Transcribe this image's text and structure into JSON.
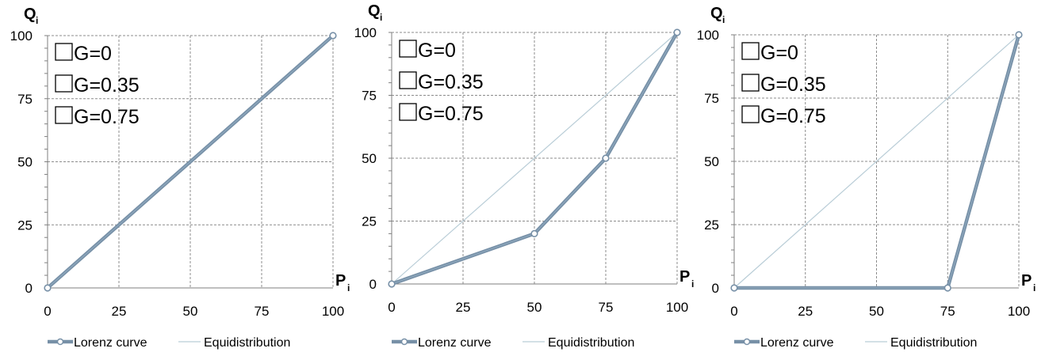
{
  "chart_data": [
    {
      "type": "line",
      "ylabel": "Q",
      "ylabel_sub": "i",
      "xlabel": "P",
      "xlabel_sub": "i",
      "xlim": [
        0,
        100
      ],
      "ylim": [
        0,
        100
      ],
      "xticks": [
        "0",
        "25",
        "50",
        "75",
        "100"
      ],
      "yticks": [
        "0",
        "25",
        "50",
        "75",
        "100"
      ],
      "grid": true,
      "legend_position": "bottom",
      "annotations": [
        "G=0",
        "G=0.35",
        "G=0.75"
      ],
      "series": [
        {
          "name": "Lorenz curve",
          "x": [
            0,
            100
          ],
          "y": [
            0,
            100
          ],
          "markers": true
        },
        {
          "name": "Equidistribution",
          "x": [
            0,
            100
          ],
          "y": [
            0,
            100
          ],
          "markers": false
        }
      ]
    },
    {
      "type": "line",
      "ylabel": "Q",
      "ylabel_sub": "i",
      "xlabel": "P",
      "xlabel_sub": "i",
      "xlim": [
        0,
        100
      ],
      "ylim": [
        0,
        100
      ],
      "xticks": [
        "0",
        "25",
        "50",
        "75",
        "100"
      ],
      "yticks": [
        "0",
        "25",
        "50",
        "75",
        "100"
      ],
      "grid": true,
      "legend_position": "bottom",
      "annotations": [
        "G=0",
        "G=0.35",
        "G=0.75"
      ],
      "series": [
        {
          "name": "Lorenz curve",
          "x": [
            0,
            50,
            75,
            100
          ],
          "y": [
            0,
            20,
            50,
            100
          ],
          "markers": true
        },
        {
          "name": "Equidistribution",
          "x": [
            0,
            100
          ],
          "y": [
            0,
            100
          ],
          "markers": false
        }
      ]
    },
    {
      "type": "line",
      "ylabel": "Q",
      "ylabel_sub": "i",
      "xlabel": "P",
      "xlabel_sub": "i",
      "xlim": [
        0,
        100
      ],
      "ylim": [
        0,
        100
      ],
      "xticks": [
        "0",
        "25",
        "50",
        "75",
        "100"
      ],
      "yticks": [
        "0",
        "25",
        "50",
        "75",
        "100"
      ],
      "grid": true,
      "legend_position": "bottom",
      "annotations": [
        "G=0",
        "G=0.35",
        "G=0.75"
      ],
      "series": [
        {
          "name": "Lorenz curve",
          "x": [
            0,
            75,
            100
          ],
          "y": [
            0,
            0,
            100
          ],
          "markers": true
        },
        {
          "name": "Equidistribution",
          "x": [
            0,
            100
          ],
          "y": [
            0,
            100
          ],
          "markers": false
        }
      ]
    }
  ],
  "colors": {
    "lorenz": "#7790a7",
    "lorenz_core": "#8ea8bd",
    "equidistribution": "#b9cdd7",
    "grid": "#8c8c8c",
    "axis": "#7f7f7f",
    "text": "#000000"
  }
}
